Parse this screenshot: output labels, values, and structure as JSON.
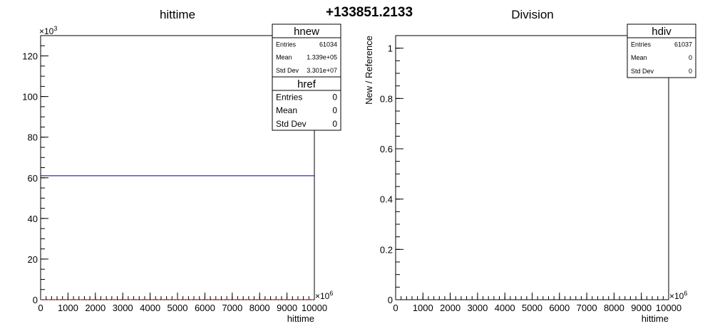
{
  "page_title": "+133851.2133",
  "chart_data": [
    {
      "type": "histogram",
      "title": "hittime",
      "xlabel": "hittime",
      "ylabel": "",
      "x_exponent": "×10",
      "x_exponent_power": "6",
      "y_exponent": "×10",
      "y_exponent_power": "3",
      "xlim": [
        0,
        10000
      ],
      "ylim": [
        0,
        130
      ],
      "x_ticks": [
        "0",
        "1000",
        "2000",
        "3000",
        "4000",
        "5000",
        "6000",
        "7000",
        "8000",
        "9000",
        "10000"
      ],
      "y_ticks": [
        "0",
        "20",
        "40",
        "60",
        "80",
        "100",
        "120"
      ],
      "series": [
        {
          "name": "hnew",
          "color": "#000080",
          "x": [
            0,
            10000
          ],
          "y": [
            61.034,
            61.034
          ]
        },
        {
          "name": "href",
          "color": "#cc0000",
          "x": [
            0,
            10000
          ],
          "y": [
            0,
            0
          ]
        }
      ],
      "stats": [
        {
          "name": "hnew",
          "rows": [
            [
              "Entries",
              "61034"
            ],
            [
              "Mean",
              "1.339e+05"
            ],
            [
              "Std Dev",
              "3.301e+07"
            ]
          ]
        },
        {
          "name": "href",
          "rows": [
            [
              "Entries",
              "0"
            ],
            [
              "Mean",
              "0"
            ],
            [
              "Std Dev",
              "0"
            ]
          ]
        }
      ]
    },
    {
      "type": "histogram",
      "title": "Division",
      "xlabel": "hittime",
      "ylabel": "New / Reference",
      "x_exponent": "×10",
      "x_exponent_power": "6",
      "xlim": [
        0,
        10000
      ],
      "ylim": [
        0,
        1.05
      ],
      "x_ticks": [
        "0",
        "1000",
        "2000",
        "3000",
        "4000",
        "5000",
        "6000",
        "7000",
        "8000",
        "9000",
        "10000"
      ],
      "y_ticks": [
        "0",
        "0.2",
        "0.4",
        "0.6",
        "0.8",
        "1"
      ],
      "series": [
        {
          "name": "hdiv",
          "color": "#000080",
          "x": [],
          "y": []
        }
      ],
      "stats": [
        {
          "name": "hdiv",
          "rows": [
            [
              "Entries",
              "61037"
            ],
            [
              "Mean",
              "0"
            ],
            [
              "Std Dev",
              "0"
            ]
          ]
        }
      ]
    }
  ]
}
